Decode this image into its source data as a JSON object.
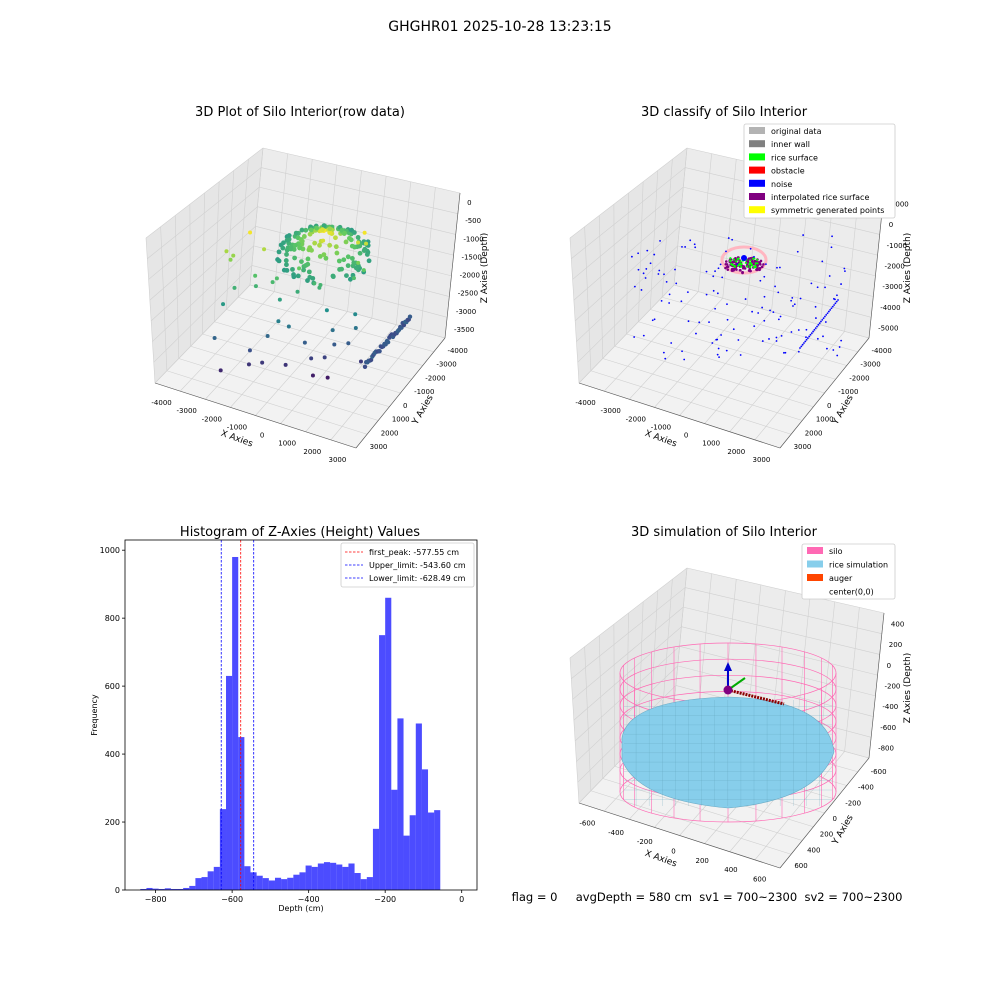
{
  "figure": {
    "suptitle": "GHGHR01 2025-10-28 13:23:15",
    "footer": "flag = 0     avgDepth = 580 cm  sv1 = 700~2300  sv2 = 700~2300"
  },
  "chart_data": [
    {
      "type": "scatter",
      "projection": "3d",
      "title": "3D Plot of Silo Interior(row data)",
      "xlabel": "X Axies",
      "ylabel": "Y Axies",
      "zlabel": "Z Axies (Depth)",
      "x_ticks": [
        "-4000",
        "-3000",
        "-2000",
        "-1000",
        "0",
        "1000",
        "2000",
        "3000"
      ],
      "y_ticks": [
        "-4000",
        "-3000",
        "-2000",
        "-1000",
        "0",
        "1000",
        "2000",
        "3000"
      ],
      "z_ticks": [
        "0",
        "-500",
        "-1000",
        "-1500",
        "-2000",
        "-2500",
        "-3000",
        "-3500"
      ],
      "colormap": "viridis",
      "grid": true
    },
    {
      "type": "scatter",
      "projection": "3d",
      "title": "3D classify of Silo Interior",
      "xlabel": "X Axies",
      "ylabel": "Y Axies",
      "zlabel": "Z Axies (Depth)",
      "x_ticks": [
        "-4000",
        "-3000",
        "-2000",
        "-1000",
        "0",
        "1000",
        "2000",
        "3000"
      ],
      "y_ticks": [
        "-4000",
        "-3000",
        "-2000",
        "-1000",
        "0",
        "1000",
        "2000",
        "3000"
      ],
      "z_ticks": [
        "1000",
        "0",
        "-1000",
        "-2000",
        "-3000",
        "-4000",
        "-5000"
      ],
      "legend_position": "top-right",
      "legend": [
        {
          "label": "original data",
          "color": "#b3b3b3"
        },
        {
          "label": "inner wall",
          "color": "#808080"
        },
        {
          "label": "rice surface",
          "color": "#00ff00"
        },
        {
          "label": "obstacle",
          "color": "#ff0000"
        },
        {
          "label": "noise",
          "color": "#0000ff"
        },
        {
          "label": "interpolated rice surface",
          "color": "#800080"
        },
        {
          "label": "symmetric generated points",
          "color": "#ffff00"
        }
      ],
      "grid": true
    },
    {
      "type": "bar",
      "title": "Histogram of Z-Axies (Height) Values",
      "xlabel": "Depth (cm)",
      "ylabel": "Frequency",
      "xlim": [
        -880,
        40
      ],
      "ylim": [
        0,
        1030
      ],
      "x_ticks": [
        -800,
        -600,
        -400,
        -200,
        0
      ],
      "y_ticks": [
        0,
        200,
        400,
        600,
        800,
        1000
      ],
      "bin_width": 16,
      "bin_start": -840,
      "values": [
        3,
        6,
        4,
        3,
        5,
        3,
        3,
        6,
        12,
        35,
        38,
        55,
        68,
        238,
        630,
        980,
        450,
        70,
        52,
        42,
        35,
        28,
        36,
        32,
        36,
        45,
        52,
        72,
        68,
        78,
        82,
        80,
        75,
        68,
        78,
        50,
        32,
        38,
        180,
        750,
        860,
        295,
        505,
        160,
        220,
        490,
        355,
        228,
        235
      ],
      "bar_color": "#0000ff",
      "lines": [
        {
          "label": "first_peak: -577.55 cm",
          "x": -577.55,
          "color": "#ff0000"
        },
        {
          "label": "Upper_limit: -543.60 cm",
          "x": -543.6,
          "color": "#0000ff"
        },
        {
          "label": "Lower_limit: -628.49 cm",
          "x": -628.49,
          "color": "#0000ff"
        }
      ],
      "legend_position": "top-right"
    },
    {
      "type": "surface",
      "projection": "3d",
      "title": "3D simulation of Silo Interior",
      "xlabel": "X Axies",
      "ylabel": "Y Axies",
      "zlabel": "Z Axies (Depth)",
      "x_ticks": [
        "-600",
        "-400",
        "-200",
        "0",
        "200",
        "400",
        "600"
      ],
      "y_ticks": [
        "-600",
        "-400",
        "-200",
        "0",
        "200",
        "400",
        "600"
      ],
      "z_ticks": [
        "400",
        "200",
        "0",
        "-200",
        "-400",
        "-600",
        "-800"
      ],
      "legend_position": "top-right",
      "legend": [
        {
          "label": "silo",
          "color": "#ff69b4"
        },
        {
          "label": "rice simulation",
          "color": "#87ceeb"
        },
        {
          "label": "auger",
          "color": "#ff4500"
        },
        {
          "label": "center(0,0)",
          "color": ""
        }
      ],
      "grid": true
    }
  ]
}
